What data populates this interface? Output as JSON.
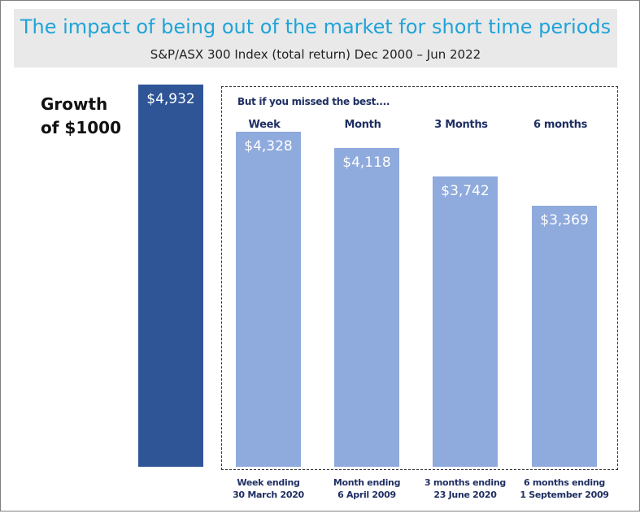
{
  "chart_data": {
    "type": "bar",
    "title": "The impact of being out of the market for short time periods",
    "subtitle": "S&P/ASX 300 Index (total return) Dec 2000 – Jun 2022",
    "ylabel": [
      "Growth",
      "of $1000"
    ],
    "group_label": "But if you missed the best....",
    "categories": [
      {
        "header": "",
        "line1": "",
        "line2": ""
      },
      {
        "header": "Week",
        "line1": "Week ending",
        "line2": "30 March 2020"
      },
      {
        "header": "Month",
        "line1": "Month ending",
        "line2": "6 April 2009"
      },
      {
        "header": "3 Months",
        "line1": "3 months  ending",
        "line2": "23 June 2020"
      },
      {
        "header": "6 months",
        "line1": "6 months ending",
        "line2": "1 September 2009"
      }
    ],
    "values": [
      4932,
      4328,
      4118,
      3742,
      3369
    ],
    "value_labels": [
      "$4,932",
      "$4,328",
      "$4,118",
      "$3,742",
      "$3,369"
    ],
    "ylim": [
      0,
      5000
    ],
    "colors": {
      "first": "#2f5597",
      "rest": "#8faadc"
    },
    "grid": false
  }
}
